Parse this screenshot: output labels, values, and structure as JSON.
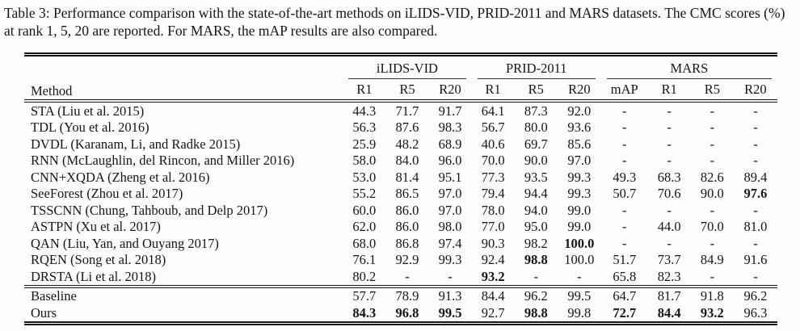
{
  "caption": {
    "text": "Table 3: Performance comparison with the state-of-the-art methods on iLIDS-VID, PRID-2011 and MARS datasets. The CMC scores (%) at rank 1, 5, 20 are reported. For MARS, the mAP results are also compared."
  },
  "table": {
    "method_header": "Method",
    "groups": [
      {
        "label": "iLIDS-VID",
        "cols": [
          "R1",
          "R5",
          "R20"
        ]
      },
      {
        "label": "PRID-2011",
        "cols": [
          "R1",
          "R5",
          "R20"
        ]
      },
      {
        "label": "MARS",
        "cols": [
          "mAP",
          "R1",
          "R5",
          "R20"
        ]
      }
    ],
    "rows": [
      {
        "method": "STA (Liu et al. 2015)",
        "values": [
          "44.3",
          "71.7",
          "91.7",
          "64.1",
          "87.3",
          "92.0",
          "-",
          "-",
          "-",
          "-"
        ],
        "bold": []
      },
      {
        "method": "TDL (You et al. 2016)",
        "values": [
          "56.3",
          "87.6",
          "98.3",
          "56.7",
          "80.0",
          "93.6",
          "-",
          "-",
          "-",
          "-"
        ],
        "bold": []
      },
      {
        "method": "DVDL (Karanam, Li, and Radke 2015)",
        "values": [
          "25.9",
          "48.2",
          "68.9",
          "40.6",
          "69.7",
          "85.6",
          "-",
          "-",
          "-",
          "-"
        ],
        "bold": []
      },
      {
        "method": "RNN (McLaughlin, del Rincon, and Miller 2016)",
        "values": [
          "58.0",
          "84.0",
          "96.0",
          "70.0",
          "90.0",
          "97.0",
          "-",
          "-",
          "-",
          "-"
        ],
        "bold": []
      },
      {
        "method": "CNN+XQDA (Zheng et al. 2016)",
        "values": [
          "53.0",
          "81.4",
          "95.1",
          "77.3",
          "93.5",
          "99.3",
          "49.3",
          "68.3",
          "82.6",
          "89.4"
        ],
        "bold": []
      },
      {
        "method": "SeeForest (Zhou et al. 2017)",
        "values": [
          "55.2",
          "86.5",
          "97.0",
          "79.4",
          "94.4",
          "99.3",
          "50.7",
          "70.6",
          "90.0",
          "97.6"
        ],
        "bold": [
          9
        ]
      },
      {
        "method": "TSSCNN (Chung, Tahboub, and Delp 2017)",
        "values": [
          "60.0",
          "86.0",
          "97.0",
          "78.0",
          "94.0",
          "99.0",
          "-",
          "-",
          "-",
          "-"
        ],
        "bold": []
      },
      {
        "method": "ASTPN (Xu et al. 2017)",
        "values": [
          "62.0",
          "86.0",
          "98.0",
          "77.0",
          "95.0",
          "99.0",
          "-",
          "44.0",
          "70.0",
          "81.0"
        ],
        "bold": []
      },
      {
        "method": "QAN (Liu, Yan, and Ouyang 2017)",
        "values": [
          "68.0",
          "86.8",
          "97.4",
          "90.3",
          "98.2",
          "100.0",
          "-",
          "-",
          "-",
          "-"
        ],
        "bold": [
          5
        ]
      },
      {
        "method": "RQEN (Song et al. 2018)",
        "values": [
          "76.1",
          "92.9",
          "99.3",
          "92.4",
          "98.8",
          "100.0",
          "51.7",
          "73.7",
          "84.9",
          "91.6"
        ],
        "bold": [
          4
        ]
      },
      {
        "method": "DRSTA (Li et al. 2018)",
        "values": [
          "80.2",
          "-",
          "-",
          "93.2",
          "-",
          "-",
          "65.8",
          "82.3",
          "-",
          "-"
        ],
        "bold": [
          3
        ]
      }
    ],
    "footer_rows": [
      {
        "method": "Baseline",
        "values": [
          "57.7",
          "78.9",
          "91.3",
          "84.4",
          "96.2",
          "99.5",
          "64.7",
          "81.7",
          "91.8",
          "96.2"
        ],
        "bold": []
      },
      {
        "method": "Ours",
        "values": [
          "84.3",
          "96.8",
          "99.5",
          "92.7",
          "98.8",
          "99.8",
          "72.7",
          "84.4",
          "93.2",
          "96.3"
        ],
        "bold": [
          0,
          1,
          2,
          4,
          6,
          7,
          8
        ]
      }
    ]
  }
}
